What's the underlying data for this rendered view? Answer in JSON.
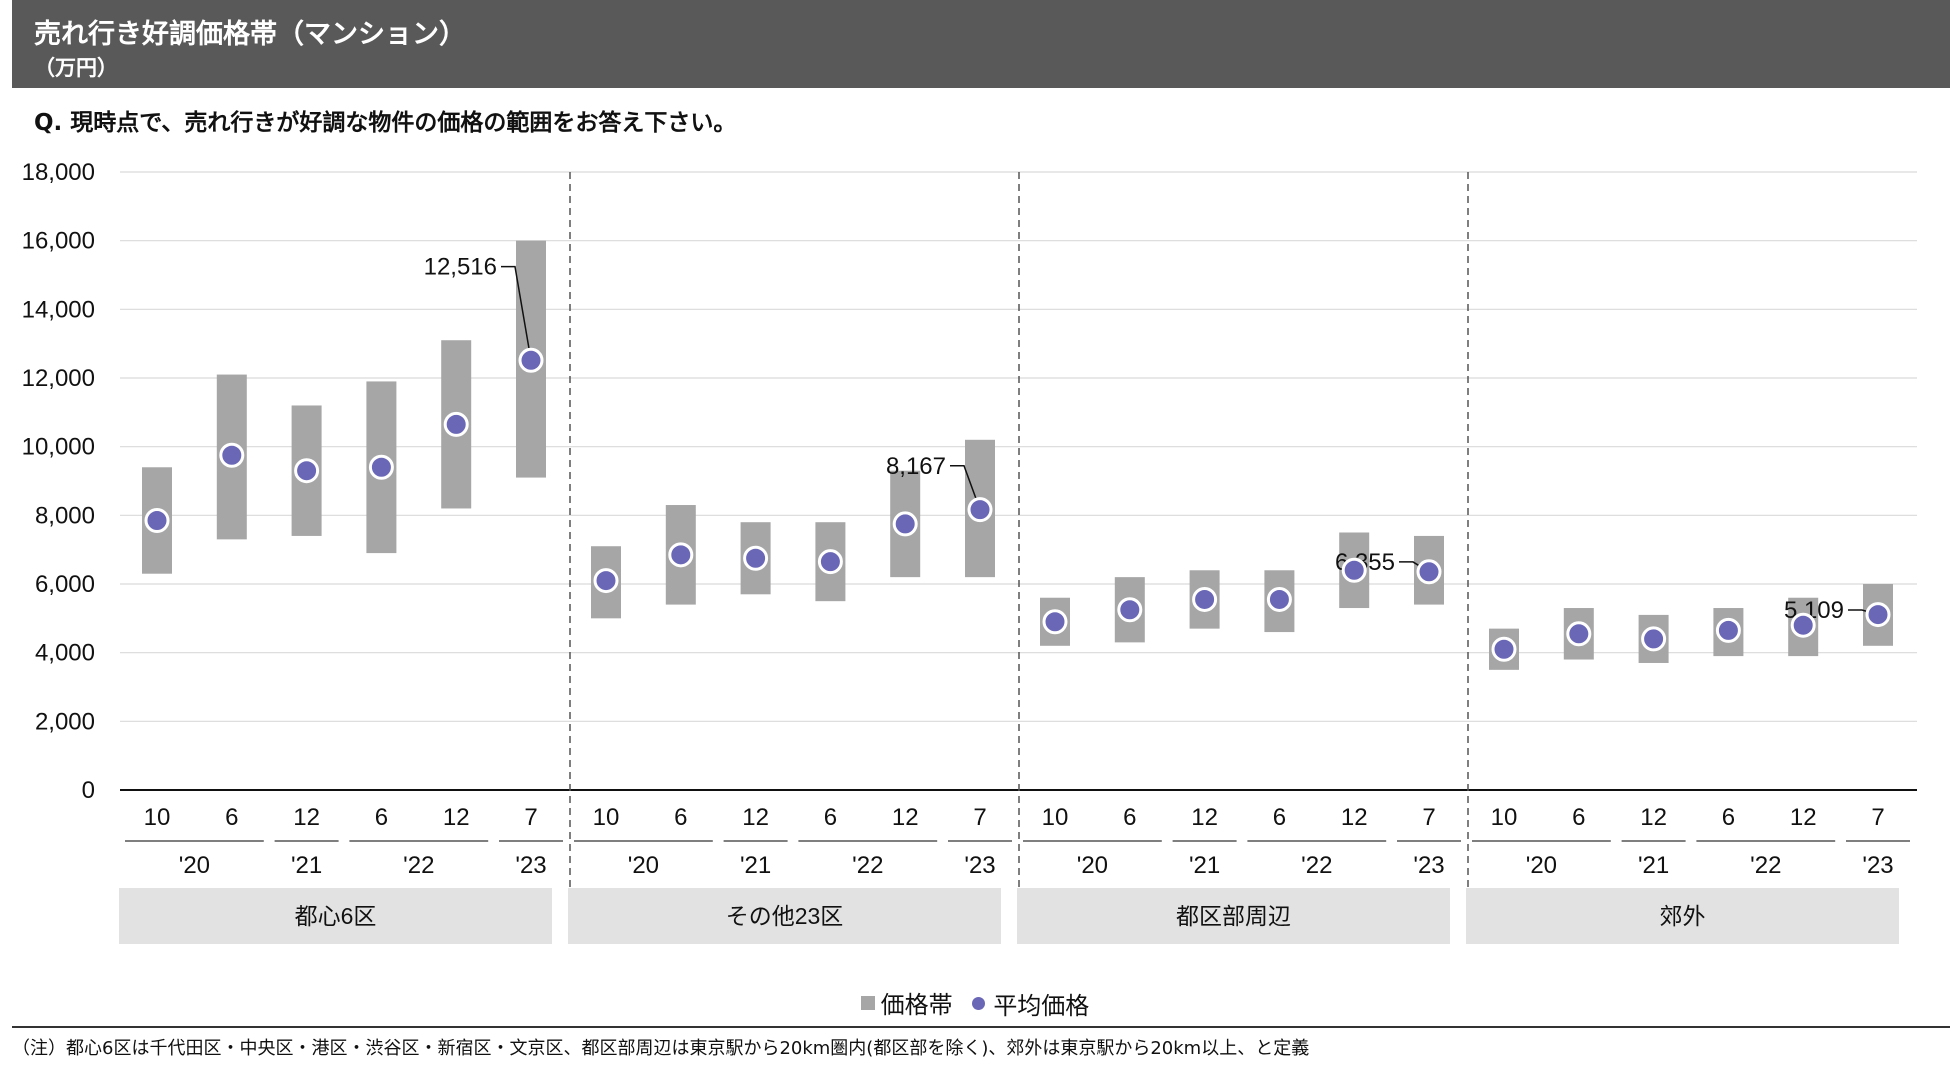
{
  "header": {
    "title": "売れ行き好調価格帯（マンション）",
    "unit": "（万円）"
  },
  "question": "Q. 現時点で、売れ行きが好調な物件の価格の範囲をお答え下さい。",
  "legend": {
    "range_label": "価格帯",
    "avg_label": "平均価格"
  },
  "note": "（注）都心6区は千代田区・中央区・港区・渋谷区・新宿区・文京区、都区部周辺は東京駅から20km圏内(都区部を除く)、郊外は東京駅から20km以上、と定義",
  "colors": {
    "range": "#a6a6a6",
    "avg": "#6a67b6",
    "group_bg": "#e2e2e2",
    "grid": "#d9d9d9",
    "header_bg": "#595959"
  },
  "chart_data": {
    "type": "range-dot",
    "ylim": [
      0,
      18000
    ],
    "yticks": [
      "0",
      "2,000",
      "4,000",
      "6,000",
      "8,000",
      "10,000",
      "12,000",
      "14,000",
      "16,000",
      "18,000"
    ],
    "months": [
      "10",
      "6",
      "12",
      "6",
      "12",
      "7"
    ],
    "years": [
      "'20",
      "'21",
      "'22",
      "'23"
    ],
    "groups": [
      {
        "name": "都心6区",
        "low": [
          6300,
          7300,
          7400,
          6900,
          8200,
          9100
        ],
        "high": [
          9400,
          12100,
          11200,
          11900,
          13100,
          16000
        ],
        "avg": [
          7850,
          9750,
          9300,
          9400,
          10650,
          12516
        ],
        "label": "12,516"
      },
      {
        "name": "その他23区",
        "low": [
          5000,
          5400,
          5700,
          5500,
          6200,
          6200
        ],
        "high": [
          7100,
          8300,
          7800,
          7800,
          9300,
          10200
        ],
        "avg": [
          6100,
          6850,
          6750,
          6650,
          7750,
          8167
        ],
        "label": "8,167"
      },
      {
        "name": "都区部周辺",
        "low": [
          4200,
          4300,
          4700,
          4600,
          5300,
          5400
        ],
        "high": [
          5600,
          6200,
          6400,
          6400,
          7500,
          7400
        ],
        "avg": [
          4900,
          5250,
          5550,
          5550,
          6400,
          6355
        ],
        "label": "6,355"
      },
      {
        "name": "郊外",
        "low": [
          3500,
          3800,
          3700,
          3900,
          3900,
          4200
        ],
        "high": [
          4700,
          5300,
          5100,
          5300,
          5600,
          6000
        ],
        "avg": [
          4100,
          4550,
          4400,
          4650,
          4800,
          5109
        ],
        "label": "5,109"
      }
    ]
  }
}
